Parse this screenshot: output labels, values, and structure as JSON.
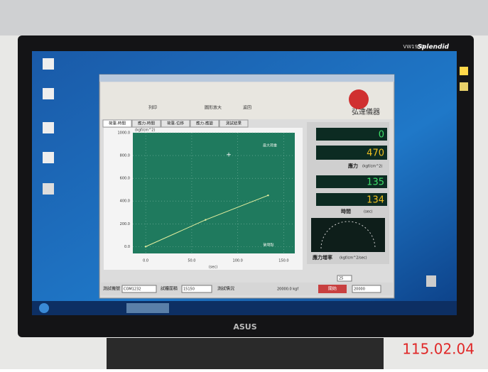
{
  "monitor": {
    "model": "VW193D",
    "logo": "Splendid",
    "brand": "ASUS"
  },
  "photo_stamp": "115.02.04",
  "toolbar": [
    "列印",
    "圖形放大",
    "返回"
  ],
  "company": "弘達儀器",
  "tabs": [
    "荷重-時間",
    "應力-時間",
    "荷重-位移",
    "應力-應變",
    "測試結果"
  ],
  "chart_data": {
    "type": "line",
    "y_label": "(kgf/cm^2)",
    "x_label": "(sec)",
    "annotations": [
      "最大荷重",
      "破壞點"
    ],
    "x": [
      0,
      65,
      133
    ],
    "values": [
      0,
      235,
      450
    ],
    "color": "#e8f0a0",
    "xlim": [
      -14,
      162
    ],
    "ylim": [
      -60,
      1000
    ],
    "xticks": [
      {
        "value": 0,
        "label": "0.0"
      },
      {
        "value": 50,
        "label": "50.0"
      },
      {
        "value": 100,
        "label": "100.0"
      },
      {
        "value": 150,
        "label": "150.0"
      }
    ],
    "yticks": [
      {
        "value": 0,
        "label": "0.0"
      },
      {
        "value": 200,
        "label": "200.0"
      },
      {
        "value": 400,
        "label": "400.0"
      },
      {
        "value": 600,
        "label": "600.0"
      },
      {
        "value": 800,
        "label": "800.0"
      },
      {
        "value": 1000,
        "label": "1000.0"
      }
    ],
    "grid": true
  },
  "readouts": {
    "load": 0,
    "stress": 470,
    "stress_label": "應力",
    "stress_unit": "(kgf/cm^2)",
    "time_a": 135,
    "time_b": 134,
    "time_label": "時間",
    "time_unit": "(sec)",
    "rate_label": "應力增率",
    "rate_unit": "(kgf/cm^2/sec)",
    "rate_setting": 25
  },
  "bottom_bar": {
    "machine_label": "測試機號",
    "machine": "COM1232",
    "area_label": "試體面積",
    "area": "15150",
    "status_label": "測試情況",
    "capacity": "20000.0 kgf",
    "start": "開始",
    "max": "20000"
  }
}
